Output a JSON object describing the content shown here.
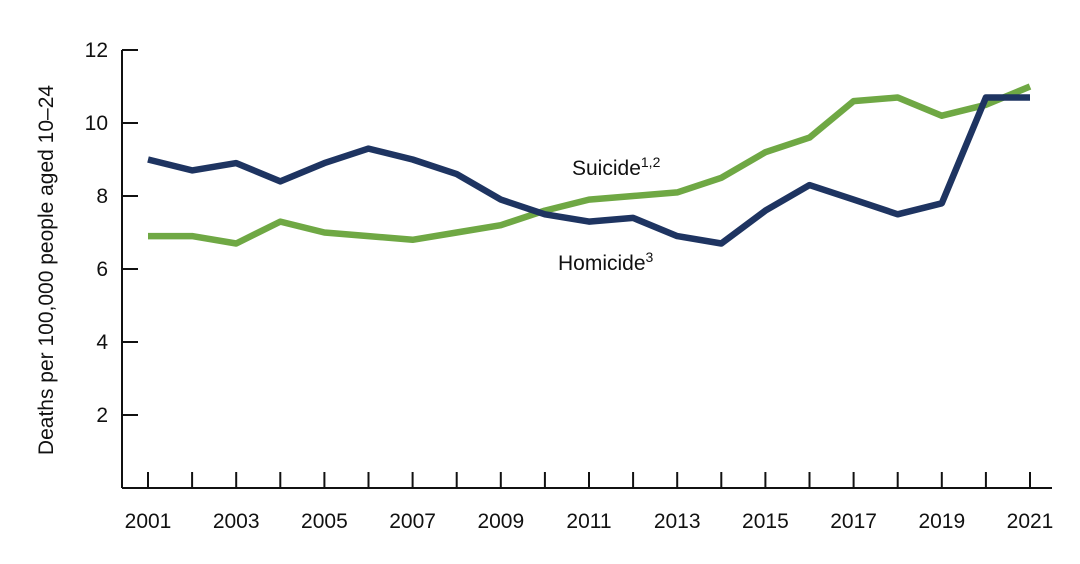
{
  "chart_data": {
    "type": "line",
    "title": "",
    "xlabel": "",
    "ylabel": "Deaths per 100,000 people aged 10–24",
    "ylim": [
      0,
      12
    ],
    "yticks": [
      2,
      4,
      6,
      8,
      10,
      12
    ],
    "xticks": [
      2001,
      2003,
      2005,
      2007,
      2009,
      2011,
      2013,
      2015,
      2017,
      2019,
      2021
    ],
    "x": [
      2001,
      2002,
      2003,
      2004,
      2005,
      2006,
      2007,
      2008,
      2009,
      2010,
      2011,
      2012,
      2013,
      2014,
      2015,
      2016,
      2017,
      2018,
      2019,
      2020,
      2021
    ],
    "grid": false,
    "legend": "inline labels",
    "series": [
      {
        "name": "Suicide",
        "superscript": "1,2",
        "color": "#6fa844",
        "values": [
          6.9,
          6.9,
          6.7,
          7.3,
          7.0,
          6.9,
          6.8,
          7.0,
          7.2,
          7.6,
          7.9,
          8.0,
          8.1,
          8.5,
          9.2,
          9.6,
          10.6,
          10.7,
          10.2,
          10.5,
          11.0
        ]
      },
      {
        "name": "Homicide",
        "superscript": "3",
        "color": "#1e3461",
        "values": [
          9.0,
          8.7,
          8.9,
          8.4,
          8.9,
          9.3,
          9.0,
          8.6,
          7.9,
          7.5,
          7.3,
          7.4,
          6.9,
          6.7,
          7.6,
          8.3,
          7.9,
          7.5,
          7.8,
          10.7,
          10.7
        ]
      }
    ]
  }
}
